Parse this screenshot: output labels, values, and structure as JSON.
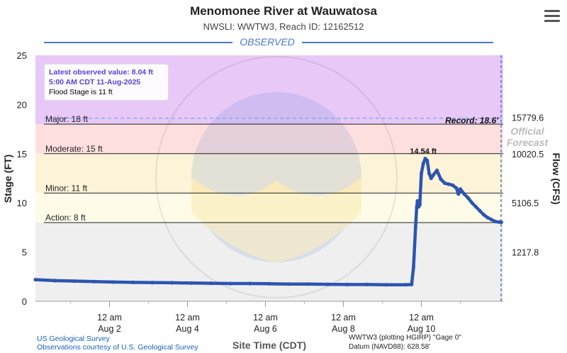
{
  "header": {
    "title": "Menomonee River at Wauwatosa",
    "subtitle": "NWSLI: WWTW3, Reach ID: 12162512"
  },
  "info_box": {
    "latest_label": "Latest observed value: 8.04 ft",
    "latest_time": "5:00 AM CDT 11-Aug-2025",
    "flood_stage": "Flood Stage is 11 ft"
  },
  "footer": {
    "source_line1": "US Geological Survey",
    "source_line2": "Observations courtesy of U.S. Geological Survey",
    "datum_line1": "WWTW3 (plotting HGIRP) \"Gage 0\"",
    "datum_line2": "Datum (NAVD88): 628.58'"
  },
  "colors": {
    "major": "#e7c8f7",
    "moderate": "#fde0de",
    "minor": "#fdf3d8",
    "action": "#fefce8",
    "normal": "#efefef",
    "series": "#2d55b0",
    "observed": "#4a78c9"
  },
  "chart_data": {
    "type": "line",
    "title": "Menomonee River at Wauwatosa",
    "subtitle": "NWSLI: WWTW3, Reach ID: 12162512",
    "xlabel": "Site Time (CDT)",
    "ylabel": "Stage (FT)",
    "y2label": "Flow (CFS)",
    "ylim": [
      0,
      25
    ],
    "xlim": [
      -0.9,
      11.1
    ],
    "yticks": [
      0,
      5,
      10,
      15,
      20,
      25
    ],
    "y2ticks": [
      {
        "stage": 18.7,
        "label": "15779.6"
      },
      {
        "stage": 15,
        "label": "10020.5"
      },
      {
        "stage": 10,
        "label": "5106.5"
      },
      {
        "stage": 5,
        "label": "1217.8"
      }
    ],
    "xticks": [
      {
        "x": 1,
        "line1": "12 am",
        "line2": "Aug 2"
      },
      {
        "x": 3,
        "line1": "12 am",
        "line2": "Aug 4"
      },
      {
        "x": 5,
        "line1": "12 am",
        "line2": "Aug 6"
      },
      {
        "x": 7,
        "line1": "12 am",
        "line2": "Aug 8"
      },
      {
        "x": 9,
        "line1": "12 am",
        "line2": "Aug 10"
      }
    ],
    "thresholds": [
      {
        "name": "Major",
        "label": "Major: 18 ft",
        "value": 18
      },
      {
        "name": "Moderate",
        "label": "Moderate: 15 ft",
        "value": 15
      },
      {
        "name": "Minor",
        "label": "Minor: 11 ft",
        "value": 11
      },
      {
        "name": "Action",
        "label": "Action: 8 ft",
        "value": 8
      }
    ],
    "record": {
      "label": "Record: 18.6'",
      "value": 18.6
    },
    "peak_label": {
      "text": "14.54 ft",
      "x": 9.05,
      "y": 14.54
    },
    "observed_label": "OBSERVED",
    "forecast_label_line1": "Official",
    "forecast_label_line2": "Forecast",
    "series": [
      {
        "x": [
          -0.9,
          -0.4,
          0.1,
          0.6,
          1.1,
          1.6,
          2.1,
          2.6,
          3.1,
          3.6,
          4.1,
          4.6,
          5.1,
          5.6,
          6.1,
          6.6,
          7.1,
          7.6,
          8.1,
          8.6,
          8.75,
          8.8,
          8.85,
          8.88,
          8.9,
          8.93,
          8.96,
          9.0,
          9.05,
          9.1,
          9.15,
          9.2,
          9.25,
          9.3,
          9.4,
          9.5,
          9.6,
          9.7,
          9.8,
          9.9,
          9.95,
          10.0,
          10.1,
          10.2,
          10.3,
          10.4,
          10.5,
          10.6,
          10.7,
          10.8,
          10.9,
          11.0,
          11.05
        ],
        "y": [
          2.2,
          2.1,
          2.05,
          2.0,
          1.95,
          1.92,
          1.9,
          1.88,
          1.85,
          1.83,
          1.8,
          1.8,
          1.78,
          1.75,
          1.75,
          1.72,
          1.7,
          1.7,
          1.68,
          1.68,
          1.7,
          3.5,
          7.5,
          9.5,
          10.2,
          9.6,
          9.8,
          13.0,
          14.0,
          14.5,
          14.3,
          13.0,
          12.5,
          12.8,
          13.3,
          12.4,
          12.0,
          11.9,
          11.8,
          11.5,
          10.9,
          11.4,
          10.9,
          10.5,
          10.0,
          9.6,
          9.2,
          8.8,
          8.5,
          8.3,
          8.1,
          8.05,
          8.04
        ]
      }
    ]
  }
}
